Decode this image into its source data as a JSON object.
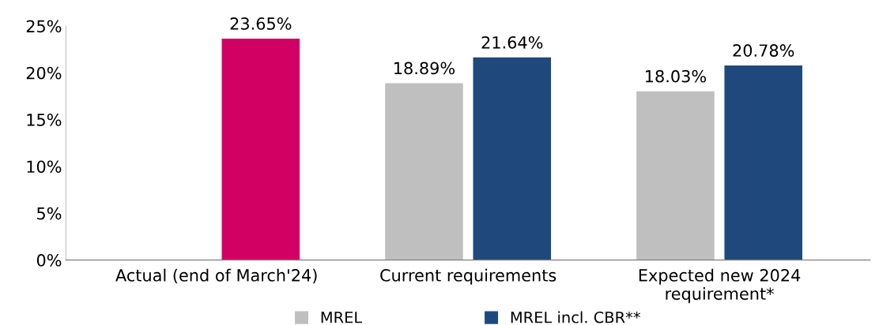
{
  "chart_data": {
    "type": "bar",
    "categories": [
      "Actual (end of March'24)",
      "Current requirements",
      "Expected new 2024\nrequirement*"
    ],
    "series": [
      {
        "name": "MREL",
        "color": "#bfbfbf",
        "values": [
          null,
          18.89,
          18.03
        ],
        "value_labels": [
          null,
          "18.89%",
          "18.03%"
        ]
      },
      {
        "name": "MREL incl. CBR**",
        "color": "#1f497d",
        "colors": [
          "#d20062",
          "#1f497d",
          "#1f497d"
        ],
        "values": [
          23.65,
          21.64,
          20.78
        ],
        "value_labels": [
          "23.65%",
          "21.64%",
          "20.78%"
        ]
      }
    ],
    "ylim": [
      0,
      25
    ],
    "yticks": [
      {
        "value": 0,
        "label": "0%"
      },
      {
        "value": 5,
        "label": "5%"
      },
      {
        "value": 10,
        "label": "10%"
      },
      {
        "value": 15,
        "label": "15%"
      },
      {
        "value": 20,
        "label": "20%"
      },
      {
        "value": 25,
        "label": "25%"
      }
    ],
    "grid": false,
    "legend": "bottom"
  }
}
